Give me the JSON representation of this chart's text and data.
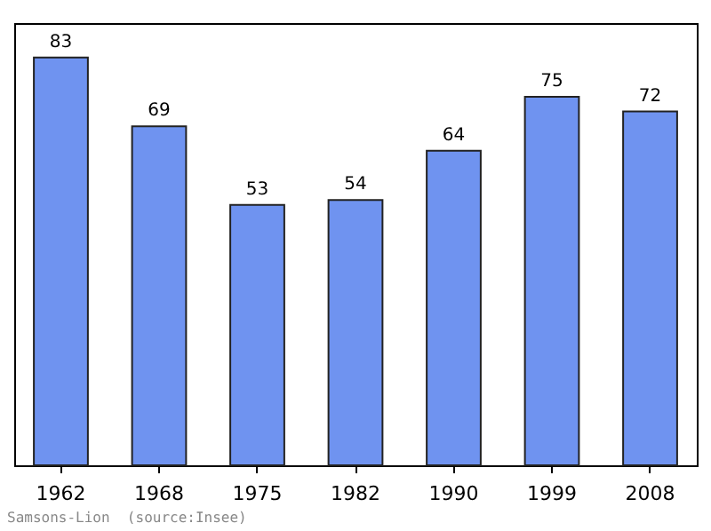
{
  "chart_data": {
    "type": "bar",
    "categories": [
      "1962",
      "1968",
      "1975",
      "1982",
      "1990",
      "1999",
      "2008"
    ],
    "values": [
      83,
      69,
      53,
      54,
      64,
      75,
      72
    ],
    "color": "#6f93f0",
    "data_labels": true,
    "annotations": [
      "Samsons-Lion  (source:Insee)"
    ]
  }
}
